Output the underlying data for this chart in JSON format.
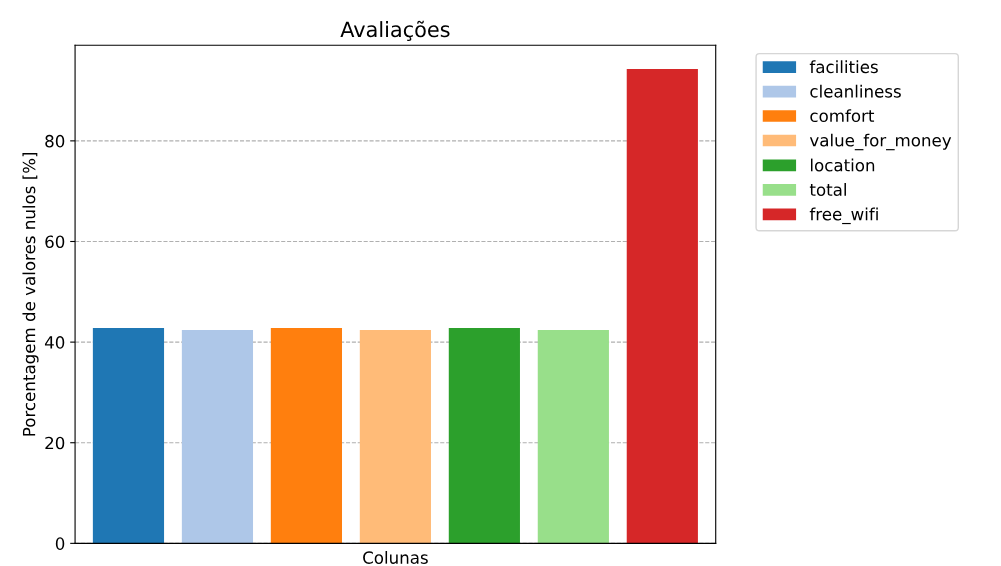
{
  "chart_data": {
    "type": "bar",
    "title": "Avaliações",
    "xlabel": "Colunas",
    "ylabel": "Porcentagem de valores nulos [%]",
    "categories": [
      null,
      null,
      null,
      null,
      null,
      null,
      null
    ],
    "series": [
      {
        "name": "facilities",
        "color": "#1f77b4",
        "values": [
          42.8,
          null,
          null,
          null,
          null,
          null,
          null
        ]
      },
      {
        "name": "cleanliness",
        "color": "#aec7e8",
        "values": [
          null,
          42.4,
          null,
          null,
          null,
          null,
          null
        ]
      },
      {
        "name": "comfort",
        "color": "#ff7f0e",
        "values": [
          null,
          null,
          42.8,
          null,
          null,
          null,
          null
        ]
      },
      {
        "name": "value_for_money",
        "color": "#ffbb78",
        "values": [
          null,
          null,
          null,
          42.4,
          null,
          null,
          null
        ]
      },
      {
        "name": "location",
        "color": "#2ca02c",
        "values": [
          null,
          null,
          null,
          null,
          42.8,
          null,
          null
        ]
      },
      {
        "name": "total",
        "color": "#98df8a",
        "values": [
          null,
          null,
          null,
          null,
          null,
          42.4,
          null
        ]
      },
      {
        "name": "free_wifi",
        "color": "#d62728",
        "values": [
          null,
          null,
          null,
          null,
          null,
          null,
          94.3
        ]
      }
    ],
    "ylim": [
      0,
      99
    ],
    "yticks": [
      0,
      20,
      40,
      60,
      80
    ],
    "grid": "y",
    "legend": "right"
  }
}
